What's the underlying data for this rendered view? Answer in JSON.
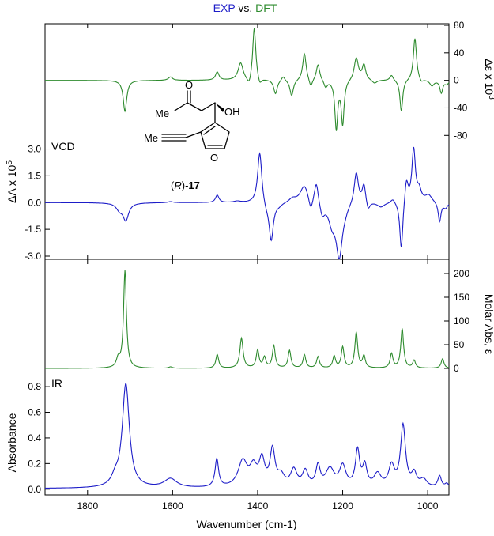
{
  "title": {
    "part1": "EXP",
    "part2": "vs.",
    "part3": "DFT",
    "color1": "#1d1dc8",
    "color2": "#000000",
    "color3": "#2e8b2e"
  },
  "colors": {
    "experimental": "#1d1dc8",
    "calculated": "#2e8b2e"
  },
  "panels": {
    "vcd": {
      "tag": "VCD",
      "left_label": "ΔA x 10",
      "left_sup": "5",
      "right_label": "Δε x 10",
      "right_sup": "3"
    },
    "ir": {
      "tag": "IR",
      "left_label": "Absorbance",
      "right_label": "Molar Abs, ε"
    }
  },
  "xaxis": {
    "label": "Wavenumber (cm-1)"
  },
  "compound": {
    "label_prefix": "(",
    "label_r": "R",
    "label_mid": ")-",
    "label_num": "17",
    "atoms": {
      "me1": "Me",
      "o_ketone": "O",
      "oh": "OH",
      "me2": "Me",
      "o_furan": "O"
    }
  },
  "chart_data": [
    {
      "type": "line",
      "name": "VCD",
      "x_range": [
        1900,
        950
      ],
      "x_ticks": [
        1800,
        1600,
        1400,
        1200,
        1000
      ],
      "grid": false,
      "left_axis": {
        "label": "ΔA x 10^5",
        "range": [
          -3.0,
          3.2
        ],
        "ticks": [
          -3.0,
          -1.5,
          0.0,
          1.5,
          3.0
        ],
        "tick_labels": [
          "-3.0",
          "-1.5",
          "0.0",
          "1.5",
          "3.0"
        ]
      },
      "right_axis": {
        "label": "Δε x 10^3",
        "range": [
          -90,
          80
        ],
        "ticks": [
          -80,
          -40,
          0,
          40,
          80
        ],
        "tick_labels": [
          "-80",
          "-40",
          "0",
          "40",
          "80"
        ]
      },
      "series": [
        {
          "name": "EXP",
          "axis": "left",
          "baseline": 0.0,
          "peaks": [
            [
              1710,
              -0.95,
              8
            ],
            [
              1725,
              -0.35,
              9
            ],
            [
              1605,
              0.06,
              8
            ],
            [
              1495,
              0.42,
              5
            ],
            [
              1448,
              0.08,
              10
            ],
            [
              1395,
              2.95,
              6
            ],
            [
              1368,
              -2.1,
              6
            ],
            [
              1380,
              -0.35,
              10
            ],
            [
              1350,
              -0.15,
              10
            ],
            [
              1318,
              0.22,
              10
            ],
            [
              1290,
              1.0,
              12
            ],
            [
              1275,
              -0.7,
              6
            ],
            [
              1262,
              1.25,
              6
            ],
            [
              1248,
              -0.7,
              7
            ],
            [
              1208,
              -2.9,
              9
            ],
            [
              1225,
              -1.0,
              10
            ],
            [
              1195,
              -0.2,
              8
            ],
            [
              1168,
              1.8,
              6
            ],
            [
              1150,
              1.05,
              5
            ],
            [
              1140,
              -0.5,
              5
            ],
            [
              1110,
              -0.25,
              10
            ],
            [
              1082,
              0.25,
              6
            ],
            [
              1062,
              -2.8,
              4.5
            ],
            [
              1050,
              1.3,
              5
            ],
            [
              1033,
              2.95,
              5
            ],
            [
              1020,
              0.6,
              6
            ],
            [
              998,
              0.4,
              10
            ],
            [
              972,
              -1.1,
              4
            ],
            [
              958,
              -0.3,
              6
            ]
          ]
        },
        {
          "name": "DFT",
          "axis": "right",
          "baseline": 0,
          "peaks": [
            [
              1712,
              -45,
              5
            ],
            [
              1605,
              5,
              6
            ],
            [
              1495,
              12,
              5
            ],
            [
              1440,
              25,
              7
            ],
            [
              1420,
              -12,
              6
            ],
            [
              1408,
              78,
              4.5
            ],
            [
              1395,
              -10,
              5
            ],
            [
              1358,
              -20,
              5
            ],
            [
              1340,
              7,
              5
            ],
            [
              1320,
              -23,
              5
            ],
            [
              1290,
              40,
              5
            ],
            [
              1275,
              -12,
              5
            ],
            [
              1258,
              24,
              5
            ],
            [
              1240,
              -10,
              5
            ],
            [
              1215,
              -70,
              4
            ],
            [
              1200,
              -63,
              4
            ],
            [
              1168,
              33,
              6
            ],
            [
              1150,
              22,
              5
            ],
            [
              1125,
              -5,
              7
            ],
            [
              1085,
              8,
              5
            ],
            [
              1062,
              -46,
              4
            ],
            [
              1030,
              62,
              4.5
            ],
            [
              1015,
              -5,
              5
            ],
            [
              990,
              -8,
              6
            ],
            [
              968,
              -18,
              4
            ],
            [
              955,
              -5,
              5
            ]
          ]
        }
      ]
    },
    {
      "type": "line",
      "name": "IR",
      "x_range": [
        1900,
        950
      ],
      "x_ticks": [
        1800,
        1600,
        1400,
        1200,
        1000
      ],
      "grid": false,
      "left_axis": {
        "label": "Absorbance",
        "range": [
          -0.02,
          0.85
        ],
        "ticks": [
          0.0,
          0.2,
          0.4,
          0.6,
          0.8
        ],
        "tick_labels": [
          "0.0",
          "0.2",
          "0.4",
          "0.6",
          "0.8"
        ]
      },
      "right_axis": {
        "label": "Molar Abs, ε",
        "range": [
          -10,
          210
        ],
        "ticks": [
          0,
          50,
          100,
          150,
          200
        ],
        "tick_labels": [
          "0",
          "50",
          "100",
          "150",
          "200"
        ]
      },
      "series": [
        {
          "name": "EXP",
          "axis": "left",
          "baseline": 0.005,
          "peaks": [
            [
              1710,
              0.81,
              10
            ],
            [
              1735,
              0.06,
              10
            ],
            [
              1605,
              0.07,
              18
            ],
            [
              1496,
              0.22,
              5
            ],
            [
              1435,
              0.2,
              13
            ],
            [
              1410,
              0.14,
              10
            ],
            [
              1390,
              0.2,
              8
            ],
            [
              1365,
              0.28,
              7
            ],
            [
              1345,
              0.08,
              10
            ],
            [
              1315,
              0.13,
              9
            ],
            [
              1288,
              0.12,
              8
            ],
            [
              1258,
              0.16,
              6
            ],
            [
              1230,
              0.14,
              12
            ],
            [
              1200,
              0.16,
              9
            ],
            [
              1165,
              0.28,
              6
            ],
            [
              1148,
              0.16,
              6
            ],
            [
              1118,
              0.1,
              10
            ],
            [
              1085,
              0.16,
              8
            ],
            [
              1058,
              0.48,
              7
            ],
            [
              1032,
              0.1,
              7
            ],
            [
              1010,
              0.06,
              10
            ],
            [
              972,
              0.09,
              5
            ],
            [
              955,
              0.03,
              5
            ]
          ]
        },
        {
          "name": "DFT",
          "axis": "right",
          "baseline": 0,
          "peaks": [
            [
              1712,
              205,
              4
            ],
            [
              1728,
              18,
              5
            ],
            [
              1605,
              3,
              5
            ],
            [
              1495,
              29,
              4
            ],
            [
              1438,
              63,
              4.5
            ],
            [
              1400,
              37,
              4
            ],
            [
              1384,
              22,
              4
            ],
            [
              1362,
              47,
              4
            ],
            [
              1325,
              37,
              4
            ],
            [
              1290,
              28,
              4
            ],
            [
              1258,
              24,
              4
            ],
            [
              1220,
              25,
              4
            ],
            [
              1200,
              44,
              4
            ],
            [
              1168,
              75,
              4
            ],
            [
              1150,
              25,
              4
            ],
            [
              1085,
              30,
              4
            ],
            [
              1060,
              83,
              4
            ],
            [
              1032,
              16,
              4
            ],
            [
              965,
              20,
              4
            ]
          ]
        }
      ]
    }
  ]
}
